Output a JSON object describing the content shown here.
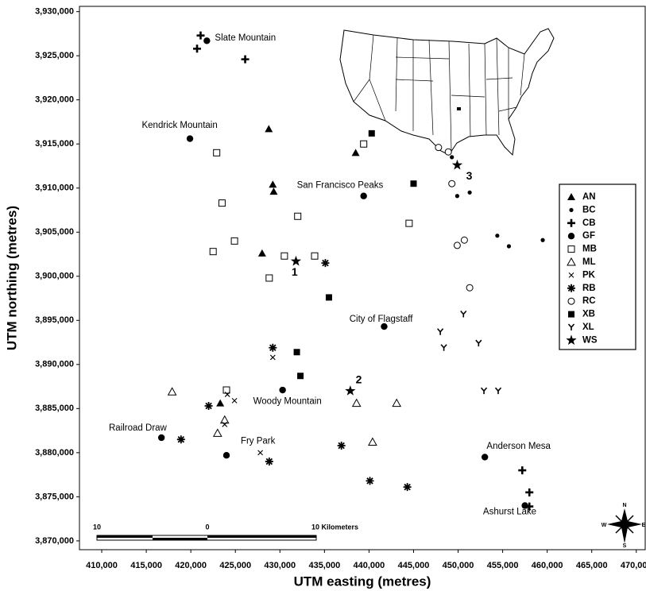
{
  "chart_data": {
    "type": "scatter",
    "xlabel": "UTM easting (metres)",
    "ylabel": "UTM northing (metres)",
    "xlim": [
      407500,
      471000
    ],
    "ylim": [
      3869000,
      3930600
    ],
    "xticks": [
      {
        "value": 410000,
        "label": "410,000"
      },
      {
        "value": 415000,
        "label": "415,000"
      },
      {
        "value": 420000,
        "label": "420,000"
      },
      {
        "value": 425000,
        "label": "425,000"
      },
      {
        "value": 430000,
        "label": "430,000"
      },
      {
        "value": 435000,
        "label": "435,000"
      },
      {
        "value": 440000,
        "label": "440,000"
      },
      {
        "value": 445000,
        "label": "445,000"
      },
      {
        "value": 450000,
        "label": "450,000"
      },
      {
        "value": 455000,
        "label": "455,000"
      },
      {
        "value": 460000,
        "label": "460,000"
      },
      {
        "value": 465000,
        "label": "465,000"
      },
      {
        "value": 470000,
        "label": "470,000"
      }
    ],
    "yticks": [
      {
        "value": 3870000,
        "label": "3,870,000"
      },
      {
        "value": 3875000,
        "label": "3,875,000"
      },
      {
        "value": 3880000,
        "label": "3,880,000"
      },
      {
        "value": 3885000,
        "label": "3,885,000"
      },
      {
        "value": 3890000,
        "label": "3,890,000"
      },
      {
        "value": 3895000,
        "label": "3,895,000"
      },
      {
        "value": 3900000,
        "label": "3,900,000"
      },
      {
        "value": 3905000,
        "label": "3,905,000"
      },
      {
        "value": 3910000,
        "label": "3,910,000"
      },
      {
        "value": 3915000,
        "label": "3,915,000"
      },
      {
        "value": 3920000,
        "label": "3,920,000"
      },
      {
        "value": 3925000,
        "label": "3,925,000"
      },
      {
        "value": 3930000,
        "label": "3,930,000"
      }
    ],
    "grid": false,
    "legend": "right",
    "series": [
      {
        "name": "AN",
        "color": "#000000",
        "marker": "triangle",
        "x": [
          428750,
          438500,
          429200,
          429300,
          428000,
          423300
        ],
        "y": [
          3916700,
          3914000,
          3910400,
          3909600,
          3902600,
          3885600
        ]
      },
      {
        "name": "BC",
        "color": "#000000",
        "marker": "dot",
        "x": [
          449300,
          449900,
          451300,
          454400,
          455700,
          459500
        ],
        "y": [
          3913500,
          3909100,
          3909500,
          3904600,
          3903400,
          3904100
        ]
      },
      {
        "name": "CB",
        "color": "#000000",
        "marker": "plus",
        "x": [
          421100,
          420700,
          426100,
          457200,
          458000,
          458000
        ],
        "y": [
          3927300,
          3925800,
          3924600,
          3878000,
          3875500,
          3873900
        ]
      },
      {
        "name": "GF",
        "color": "#000000",
        "marker": "bigdot",
        "x": [
          421800,
          419900,
          439400,
          441700,
          430300,
          416700,
          424000,
          453000,
          457500
        ],
        "y": [
          3926700,
          3915600,
          3909100,
          3894300,
          3887100,
          3881700,
          3879700,
          3879500,
          3874000
        ]
      },
      {
        "name": "MB",
        "color": "#000000",
        "marker": "square-open",
        "x": [
          422900,
          423500,
          432000,
          439400,
          424900,
          422500,
          430500,
          433900,
          428800,
          444500,
          424000
        ],
        "y": [
          3914000,
          3908300,
          3906800,
          3915000,
          3904000,
          3902800,
          3902300,
          3902300,
          3899800,
          3906000,
          3887100
        ]
      },
      {
        "name": "ML",
        "color": "#000000",
        "marker": "triangle-open",
        "x": [
          417900,
          423800,
          423000,
          438600,
          443100,
          440400
        ],
        "y": [
          3886900,
          3883700,
          3882200,
          3885600,
          3885600,
          3881200
        ]
      },
      {
        "name": "PK",
        "color": "#000000",
        "marker": "x",
        "x": [
          429200,
          424100,
          424900,
          423800,
          427800
        ],
        "y": [
          3890800,
          3886600,
          3885900,
          3883200,
          3880000
        ]
      },
      {
        "name": "RB",
        "color": "#000000",
        "marker": "asterisk",
        "x": [
          429200,
          435100,
          422000,
          418900,
          428800,
          436900,
          440100,
          444300
        ],
        "y": [
          3891900,
          3901500,
          3885300,
          3881500,
          3879000,
          3880800,
          3876800,
          3876100
        ]
      },
      {
        "name": "RC",
        "color": "#000000",
        "marker": "circle-open",
        "x": [
          447800,
          448900,
          449300,
          450700,
          449900,
          451300
        ],
        "y": [
          3914600,
          3914100,
          3910500,
          3904100,
          3903500,
          3898700
        ]
      },
      {
        "name": "XB",
        "color": "#000000",
        "marker": "square",
        "x": [
          440300,
          445000,
          435500,
          431900,
          432300
        ],
        "y": [
          3916200,
          3910500,
          3897600,
          3891400,
          3888700
        ]
      },
      {
        "name": "XL",
        "color": "#000000",
        "marker": "y",
        "x": [
          448000,
          448400,
          450600,
          452300,
          452900,
          454500
        ],
        "y": [
          3893700,
          3891900,
          3895700,
          3892400,
          3887000,
          3887000
        ]
      },
      {
        "name": "WS",
        "color": "#000000",
        "marker": "star",
        "x": [
          431800,
          449900,
          437900
        ],
        "y": [
          3901700,
          3912600,
          3887000
        ]
      }
    ],
    "place_labels": [
      {
        "text": "Slate Mountain",
        "x": 422700,
        "y": 3927000
      },
      {
        "text": "Kendrick Mountain",
        "x": 414500,
        "y": 3917100
      },
      {
        "text": "San Francisco Peaks",
        "x": 431900,
        "y": 3910300
      },
      {
        "text": "City of Flagstaff",
        "x": 437800,
        "y": 3895100
      },
      {
        "text": "Woody Mountain",
        "x": 427000,
        "y": 3885800
      },
      {
        "text": "Railroad Draw",
        "x": 410800,
        "y": 3882800
      },
      {
        "text": "Fry Park",
        "x": 425600,
        "y": 3881300
      },
      {
        "text": "Anderson Mesa",
        "x": 453200,
        "y": 3880700
      },
      {
        "text": "Ashurst Lake",
        "x": 452800,
        "y": 3873300
      }
    ],
    "site_labels": [
      {
        "text": "1",
        "x": 431300,
        "y": 3900400
      },
      {
        "text": "2",
        "x": 438500,
        "y": 3888200
      },
      {
        "text": "3",
        "x": 450900,
        "y": 3911300
      }
    ],
    "scale_bar_labels": [
      "10",
      "0",
      "10 Kilometers"
    ],
    "compass_labels": [
      "N",
      "S",
      "W",
      "E"
    ]
  }
}
